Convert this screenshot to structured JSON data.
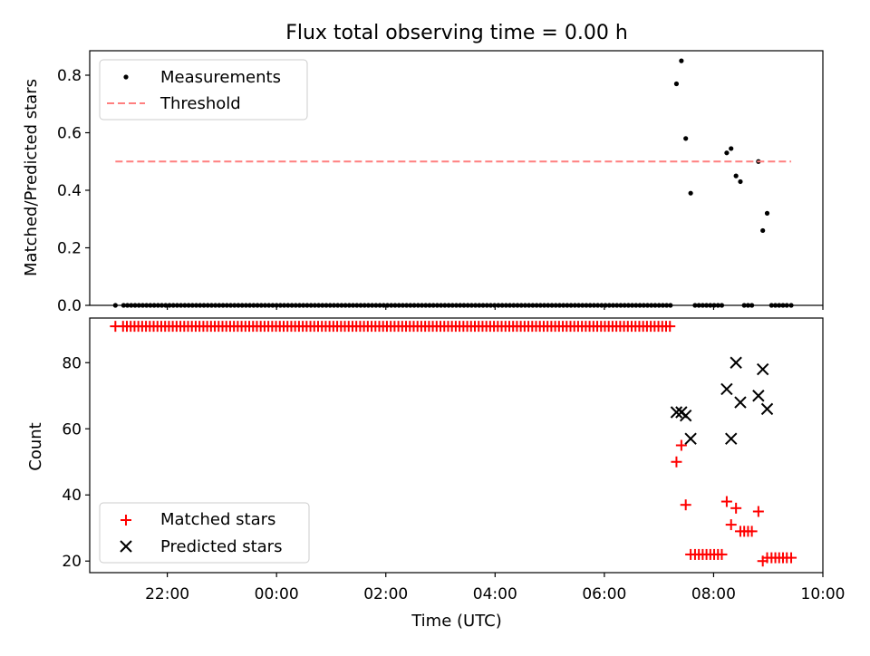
{
  "chart_data": [
    {
      "type": "scatter",
      "title": "Flux total observing time = 0.00 h",
      "xlabel": "",
      "ylabel": "Matched/Predicted stars",
      "ylim": [
        0,
        0.885
      ],
      "yticks": [
        0.0,
        0.2,
        0.4,
        0.6,
        0.8
      ],
      "ytick_labels": [
        "0.0",
        "0.2",
        "0.4",
        "0.6",
        "0.8"
      ],
      "xlim_hours": [
        20.58,
        34.0
      ],
      "grid": false,
      "legend_position": "top-left",
      "series": [
        {
          "name": "Measurements",
          "marker": "dot",
          "color": "#000000",
          "points": [
            {
              "t": 21.05,
              "y": 0.0
            },
            {
              "t": 21.2,
              "y": 0.0
            },
            {
              "t": 21.27,
              "y": 0.0
            },
            {
              "t": 21.34,
              "y": 0.0
            },
            {
              "t": 21.41,
              "y": 0.0
            },
            {
              "t": 21.48,
              "y": 0.0
            },
            {
              "t": 21.55,
              "y": 0.0
            },
            {
              "t": 21.62,
              "y": 0.0
            },
            {
              "t": 21.69,
              "y": 0.0
            },
            {
              "t": 21.76,
              "y": 0.0
            },
            {
              "t": 21.83,
              "y": 0.0
            },
            {
              "t": 21.9,
              "y": 0.0
            },
            {
              "t": 21.97,
              "y": 0.0
            },
            {
              "t": 22.04,
              "y": 0.0
            },
            {
              "t": 22.11,
              "y": 0.0
            },
            {
              "t": 22.18,
              "y": 0.0
            },
            {
              "t": 22.25,
              "y": 0.0
            },
            {
              "t": 22.32,
              "y": 0.0
            },
            {
              "t": 22.39,
              "y": 0.0
            },
            {
              "t": 22.46,
              "y": 0.0
            },
            {
              "t": 22.53,
              "y": 0.0
            },
            {
              "t": 22.6,
              "y": 0.0
            },
            {
              "t": 22.67,
              "y": 0.0
            },
            {
              "t": 22.74,
              "y": 0.0
            },
            {
              "t": 22.81,
              "y": 0.0
            },
            {
              "t": 22.88,
              "y": 0.0
            },
            {
              "t": 22.95,
              "y": 0.0
            },
            {
              "t": 23.02,
              "y": 0.0
            },
            {
              "t": 23.09,
              "y": 0.0
            },
            {
              "t": 23.16,
              "y": 0.0
            },
            {
              "t": 23.23,
              "y": 0.0
            },
            {
              "t": 23.3,
              "y": 0.0
            },
            {
              "t": 23.37,
              "y": 0.0
            },
            {
              "t": 23.44,
              "y": 0.0
            },
            {
              "t": 23.51,
              "y": 0.0
            },
            {
              "t": 23.58,
              "y": 0.0
            },
            {
              "t": 23.65,
              "y": 0.0
            },
            {
              "t": 23.72,
              "y": 0.0
            },
            {
              "t": 23.79,
              "y": 0.0
            },
            {
              "t": 23.86,
              "y": 0.0
            },
            {
              "t": 23.93,
              "y": 0.0
            },
            {
              "t": 24.0,
              "y": 0.0
            },
            {
              "t": 24.07,
              "y": 0.0
            },
            {
              "t": 24.14,
              "y": 0.0
            },
            {
              "t": 24.21,
              "y": 0.0
            },
            {
              "t": 24.28,
              "y": 0.0
            },
            {
              "t": 24.35,
              "y": 0.0
            },
            {
              "t": 24.42,
              "y": 0.0
            },
            {
              "t": 24.49,
              "y": 0.0
            },
            {
              "t": 24.56,
              "y": 0.0
            },
            {
              "t": 24.63,
              "y": 0.0
            },
            {
              "t": 24.7,
              "y": 0.0
            },
            {
              "t": 24.77,
              "y": 0.0
            },
            {
              "t": 24.84,
              "y": 0.0
            },
            {
              "t": 24.91,
              "y": 0.0
            },
            {
              "t": 24.98,
              "y": 0.0
            },
            {
              "t": 25.05,
              "y": 0.0
            },
            {
              "t": 25.12,
              "y": 0.0
            },
            {
              "t": 25.19,
              "y": 0.0
            },
            {
              "t": 25.26,
              "y": 0.0
            },
            {
              "t": 25.33,
              "y": 0.0
            },
            {
              "t": 25.4,
              "y": 0.0
            },
            {
              "t": 25.47,
              "y": 0.0
            },
            {
              "t": 25.54,
              "y": 0.0
            },
            {
              "t": 25.61,
              "y": 0.0
            },
            {
              "t": 25.68,
              "y": 0.0
            },
            {
              "t": 25.75,
              "y": 0.0
            },
            {
              "t": 25.82,
              "y": 0.0
            },
            {
              "t": 25.89,
              "y": 0.0
            },
            {
              "t": 25.96,
              "y": 0.0
            },
            {
              "t": 26.03,
              "y": 0.0
            },
            {
              "t": 26.1,
              "y": 0.0
            },
            {
              "t": 26.17,
              "y": 0.0
            },
            {
              "t": 26.24,
              "y": 0.0
            },
            {
              "t": 26.31,
              "y": 0.0
            },
            {
              "t": 26.38,
              "y": 0.0
            },
            {
              "t": 26.45,
              "y": 0.0
            },
            {
              "t": 26.52,
              "y": 0.0
            },
            {
              "t": 26.59,
              "y": 0.0
            },
            {
              "t": 26.66,
              "y": 0.0
            },
            {
              "t": 26.73,
              "y": 0.0
            },
            {
              "t": 26.8,
              "y": 0.0
            },
            {
              "t": 26.87,
              "y": 0.0
            },
            {
              "t": 26.94,
              "y": 0.0
            },
            {
              "t": 27.01,
              "y": 0.0
            },
            {
              "t": 27.08,
              "y": 0.0
            },
            {
              "t": 27.15,
              "y": 0.0
            },
            {
              "t": 27.22,
              "y": 0.0
            },
            {
              "t": 27.29,
              "y": 0.0
            },
            {
              "t": 27.36,
              "y": 0.0
            },
            {
              "t": 27.43,
              "y": 0.0
            },
            {
              "t": 27.5,
              "y": 0.0
            },
            {
              "t": 27.57,
              "y": 0.0
            },
            {
              "t": 27.64,
              "y": 0.0
            },
            {
              "t": 27.71,
              "y": 0.0
            },
            {
              "t": 27.78,
              "y": 0.0
            },
            {
              "t": 27.85,
              "y": 0.0
            },
            {
              "t": 27.92,
              "y": 0.0
            },
            {
              "t": 27.99,
              "y": 0.0
            },
            {
              "t": 28.06,
              "y": 0.0
            },
            {
              "t": 28.13,
              "y": 0.0
            },
            {
              "t": 28.2,
              "y": 0.0
            },
            {
              "t": 28.27,
              "y": 0.0
            },
            {
              "t": 28.34,
              "y": 0.0
            },
            {
              "t": 28.41,
              "y": 0.0
            },
            {
              "t": 28.48,
              "y": 0.0
            },
            {
              "t": 28.55,
              "y": 0.0
            },
            {
              "t": 28.62,
              "y": 0.0
            },
            {
              "t": 28.69,
              "y": 0.0
            },
            {
              "t": 28.76,
              "y": 0.0
            },
            {
              "t": 28.83,
              "y": 0.0
            },
            {
              "t": 28.9,
              "y": 0.0
            },
            {
              "t": 28.97,
              "y": 0.0
            },
            {
              "t": 29.04,
              "y": 0.0
            },
            {
              "t": 29.11,
              "y": 0.0
            },
            {
              "t": 29.18,
              "y": 0.0
            },
            {
              "t": 29.25,
              "y": 0.0
            },
            {
              "t": 29.32,
              "y": 0.0
            },
            {
              "t": 29.39,
              "y": 0.0
            },
            {
              "t": 29.46,
              "y": 0.0
            },
            {
              "t": 29.53,
              "y": 0.0
            },
            {
              "t": 29.6,
              "y": 0.0
            },
            {
              "t": 29.67,
              "y": 0.0
            },
            {
              "t": 29.74,
              "y": 0.0
            },
            {
              "t": 29.81,
              "y": 0.0
            },
            {
              "t": 29.88,
              "y": 0.0
            },
            {
              "t": 29.95,
              "y": 0.0
            },
            {
              "t": 30.02,
              "y": 0.0
            },
            {
              "t": 30.09,
              "y": 0.0
            },
            {
              "t": 30.16,
              "y": 0.0
            },
            {
              "t": 30.23,
              "y": 0.0
            },
            {
              "t": 30.3,
              "y": 0.0
            },
            {
              "t": 30.37,
              "y": 0.0
            },
            {
              "t": 30.44,
              "y": 0.0
            },
            {
              "t": 30.51,
              "y": 0.0
            },
            {
              "t": 30.58,
              "y": 0.0
            },
            {
              "t": 30.65,
              "y": 0.0
            },
            {
              "t": 30.72,
              "y": 0.0
            },
            {
              "t": 30.79,
              "y": 0.0
            },
            {
              "t": 30.86,
              "y": 0.0
            },
            {
              "t": 30.93,
              "y": 0.0
            },
            {
              "t": 31.0,
              "y": 0.0
            },
            {
              "t": 31.07,
              "y": 0.0
            },
            {
              "t": 31.14,
              "y": 0.0
            },
            {
              "t": 31.21,
              "y": 0.0
            },
            {
              "t": 31.32,
              "y": 0.77
            },
            {
              "t": 31.41,
              "y": 0.85
            },
            {
              "t": 31.49,
              "y": 0.58
            },
            {
              "t": 31.58,
              "y": 0.39
            },
            {
              "t": 31.66,
              "y": 0.0
            },
            {
              "t": 31.73,
              "y": 0.0
            },
            {
              "t": 31.8,
              "y": 0.0
            },
            {
              "t": 31.87,
              "y": 0.0
            },
            {
              "t": 31.94,
              "y": 0.0
            },
            {
              "t": 32.01,
              "y": 0.0
            },
            {
              "t": 32.08,
              "y": 0.0
            },
            {
              "t": 32.15,
              "y": 0.0
            },
            {
              "t": 32.24,
              "y": 0.53
            },
            {
              "t": 32.32,
              "y": 0.545
            },
            {
              "t": 32.41,
              "y": 0.45
            },
            {
              "t": 32.49,
              "y": 0.43
            },
            {
              "t": 32.56,
              "y": 0.0
            },
            {
              "t": 32.63,
              "y": 0.0
            },
            {
              "t": 32.7,
              "y": 0.0
            },
            {
              "t": 32.82,
              "y": 0.5
            },
            {
              "t": 32.9,
              "y": 0.26
            },
            {
              "t": 32.98,
              "y": 0.32
            },
            {
              "t": 33.06,
              "y": 0.0
            },
            {
              "t": 33.13,
              "y": 0.0
            },
            {
              "t": 33.2,
              "y": 0.0
            },
            {
              "t": 33.27,
              "y": 0.0
            },
            {
              "t": 33.34,
              "y": 0.0
            },
            {
              "t": 33.42,
              "y": 0.0
            }
          ]
        },
        {
          "name": "Threshold",
          "style": "dashed-line",
          "color": "#ff7f7f",
          "points": [
            {
              "t": 21.05,
              "y": 0.5
            },
            {
              "t": 33.42,
              "y": 0.5
            }
          ]
        }
      ]
    },
    {
      "type": "scatter",
      "title": "",
      "xlabel": "Time (UTC)",
      "ylabel": "Count",
      "ylim": [
        16.5,
        93.5
      ],
      "yticks": [
        20,
        40,
        60,
        80
      ],
      "ytick_labels": [
        "20",
        "40",
        "60",
        "80"
      ],
      "xlim_hours": [
        20.58,
        34.0
      ],
      "xticks_hours": [
        22,
        24,
        26,
        28,
        30,
        32,
        34
      ],
      "xtick_labels": [
        "22:00",
        "00:00",
        "02:00",
        "04:00",
        "06:00",
        "08:00",
        "10:00"
      ],
      "grid": false,
      "legend_position": "bottom-left",
      "series": [
        {
          "name": "Matched stars",
          "marker": "plus",
          "color": "#ff0000",
          "flat_run": {
            "value": 91,
            "t_start": 21.05,
            "t_end": 31.21,
            "step": 0.07,
            "skip_first_gap": true
          },
          "points": [
            {
              "t": 31.32,
              "y": 50
            },
            {
              "t": 31.41,
              "y": 55
            },
            {
              "t": 31.49,
              "y": 37
            },
            {
              "t": 31.58,
              "y": 22
            },
            {
              "t": 31.66,
              "y": 22
            },
            {
              "t": 31.73,
              "y": 22
            },
            {
              "t": 31.8,
              "y": 22
            },
            {
              "t": 31.87,
              "y": 22
            },
            {
              "t": 31.94,
              "y": 22
            },
            {
              "t": 32.01,
              "y": 22
            },
            {
              "t": 32.08,
              "y": 22
            },
            {
              "t": 32.15,
              "y": 22
            },
            {
              "t": 32.24,
              "y": 38
            },
            {
              "t": 32.32,
              "y": 31
            },
            {
              "t": 32.41,
              "y": 36
            },
            {
              "t": 32.49,
              "y": 29
            },
            {
              "t": 32.56,
              "y": 29
            },
            {
              "t": 32.63,
              "y": 29
            },
            {
              "t": 32.7,
              "y": 29
            },
            {
              "t": 32.82,
              "y": 35
            },
            {
              "t": 32.9,
              "y": 20
            },
            {
              "t": 32.98,
              "y": 21
            },
            {
              "t": 33.06,
              "y": 21
            },
            {
              "t": 33.13,
              "y": 21
            },
            {
              "t": 33.2,
              "y": 21
            },
            {
              "t": 33.27,
              "y": 21
            },
            {
              "t": 33.34,
              "y": 21
            },
            {
              "t": 33.42,
              "y": 21
            }
          ]
        },
        {
          "name": "Predicted stars",
          "marker": "x",
          "color": "#000000",
          "points": [
            {
              "t": 31.32,
              "y": 65
            },
            {
              "t": 31.41,
              "y": 65
            },
            {
              "t": 31.49,
              "y": 64
            },
            {
              "t": 31.58,
              "y": 57
            },
            {
              "t": 32.24,
              "y": 72
            },
            {
              "t": 32.32,
              "y": 57
            },
            {
              "t": 32.41,
              "y": 80
            },
            {
              "t": 32.49,
              "y": 68
            },
            {
              "t": 32.82,
              "y": 70
            },
            {
              "t": 32.9,
              "y": 78
            },
            {
              "t": 32.98,
              "y": 66
            }
          ]
        }
      ]
    }
  ]
}
